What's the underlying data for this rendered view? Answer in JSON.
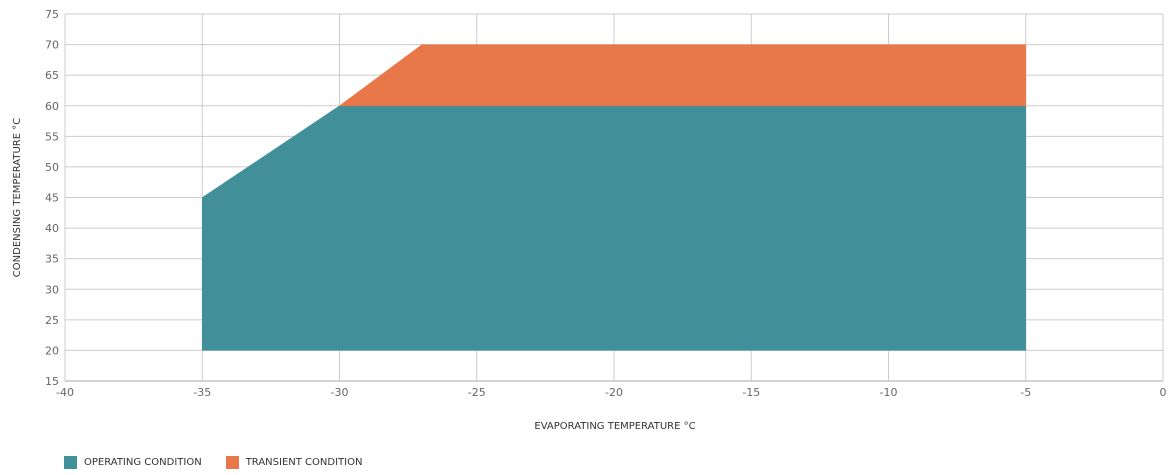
{
  "chart_data": {
    "type": "area",
    "xlabel": "EVAPORATING TEMPERATURE °C",
    "ylabel": "CONDENSING TEMPERATURE °C",
    "xlim": [
      -40,
      0
    ],
    "ylim": [
      15,
      75
    ],
    "x_ticks": [
      -40,
      -35,
      -30,
      -25,
      -20,
      -15,
      -10,
      -5,
      0
    ],
    "y_ticks": [
      15,
      20,
      25,
      30,
      35,
      40,
      45,
      50,
      55,
      60,
      65,
      70,
      75
    ],
    "grid": true,
    "legend_position": "bottom-left",
    "series": [
      {
        "name": "OPERATING CONDITION",
        "color": "#418f98",
        "polygon": [
          [
            -35,
            20
          ],
          [
            -35,
            45
          ],
          [
            -30,
            60
          ],
          [
            -5,
            60
          ],
          [
            -5,
            20
          ]
        ]
      },
      {
        "name": "TRANSIENT CONDITION",
        "color": "#e8774a",
        "polygon": [
          [
            -30,
            60
          ],
          [
            -27,
            70
          ],
          [
            -5,
            70
          ],
          [
            -5,
            60
          ]
        ]
      }
    ]
  }
}
